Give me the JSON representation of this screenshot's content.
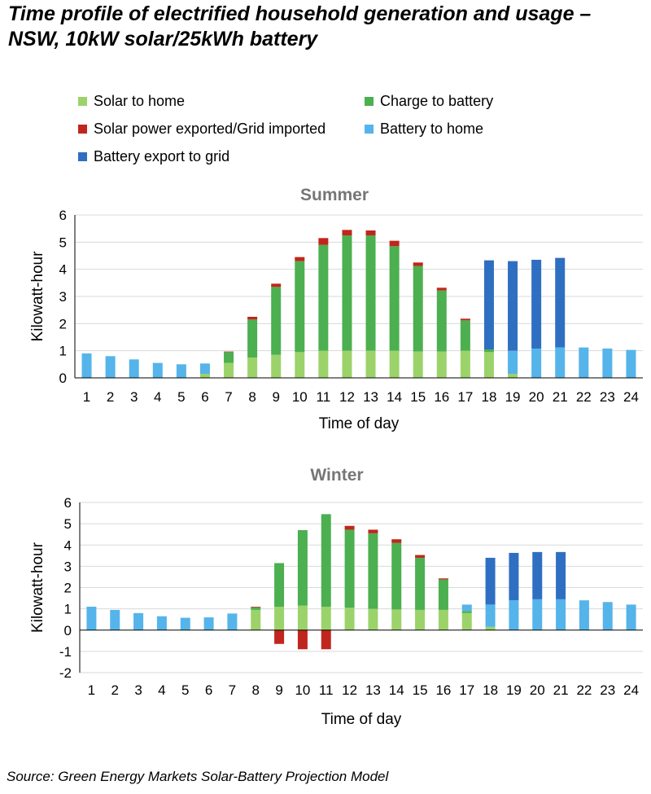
{
  "title": "Time profile of electrified household generation and usage – NSW, 10kW solar/25kWh battery",
  "source": "Source: Green Energy Markets Solar-Battery Projection Model",
  "legend": {
    "items": [
      {
        "label": "Solar to home",
        "color": "#9bd36a"
      },
      {
        "label": "Charge to battery",
        "color": "#4caf50"
      },
      {
        "label": "Solar power exported/Grid imported",
        "color": "#c0261d"
      },
      {
        "label": "Battery to home",
        "color": "#55b4ea"
      },
      {
        "label": "Battery export to grid",
        "color": "#2f6fc1"
      }
    ]
  },
  "chart_data": [
    {
      "type": "bar",
      "stacked": true,
      "title": "Summer",
      "xlabel": "Time of day",
      "ylabel": "Kilowatt-hour",
      "ylim": [
        0,
        6
      ],
      "yticks": [
        0,
        1,
        2,
        3,
        4,
        5,
        6
      ],
      "grid": true,
      "categories": [
        "1",
        "2",
        "3",
        "4",
        "5",
        "6",
        "7",
        "8",
        "9",
        "10",
        "11",
        "12",
        "13",
        "14",
        "15",
        "16",
        "17",
        "18",
        "19",
        "20",
        "21",
        "22",
        "23",
        "24"
      ],
      "series": [
        {
          "name": "Solar to home",
          "color": "#9bd36a",
          "values": [
            0,
            0,
            0,
            0,
            0,
            0.15,
            0.55,
            0.75,
            0.85,
            0.95,
            1.0,
            1.0,
            1.0,
            1.0,
            0.97,
            0.97,
            1.0,
            0.95,
            0.15,
            0,
            0,
            0,
            0,
            0
          ]
        },
        {
          "name": "Charge to battery",
          "color": "#4caf50",
          "values": [
            0,
            0,
            0,
            0,
            0,
            0,
            0.4,
            1.4,
            2.5,
            3.35,
            3.9,
            4.25,
            4.25,
            3.85,
            3.15,
            2.25,
            1.12,
            0.1,
            0,
            0,
            0,
            0,
            0,
            0
          ]
        },
        {
          "name": "Solar power exported/Grid imported",
          "color": "#c0261d",
          "values": [
            0,
            0,
            0,
            0,
            0,
            0,
            0.02,
            0.1,
            0.12,
            0.15,
            0.25,
            0.2,
            0.18,
            0.2,
            0.13,
            0.1,
            0.06,
            0,
            0,
            0,
            0,
            0,
            0,
            0
          ]
        },
        {
          "name": "Battery to home",
          "color": "#55b4ea",
          "values": [
            0.9,
            0.8,
            0.68,
            0.55,
            0.5,
            0.38,
            0,
            0,
            0,
            0,
            0,
            0,
            0,
            0,
            0,
            0,
            0,
            0,
            0.85,
            1.08,
            1.12,
            1.12,
            1.08,
            1.03
          ]
        },
        {
          "name": "Battery export to grid",
          "color": "#2f6fc1",
          "values": [
            0,
            0,
            0,
            0,
            0,
            0,
            0,
            0,
            0,
            0,
            0,
            0,
            0,
            0,
            0,
            0,
            0,
            3.28,
            3.3,
            3.27,
            3.3,
            0,
            0,
            0
          ]
        }
      ]
    },
    {
      "type": "bar",
      "stacked": true,
      "title": "Winter",
      "xlabel": "Time of day",
      "ylabel": "Kilowatt-hour",
      "ylim": [
        -2,
        6
      ],
      "yticks": [
        -2,
        -1,
        0,
        1,
        2,
        3,
        4,
        5,
        6
      ],
      "grid": true,
      "categories": [
        "1",
        "2",
        "3",
        "4",
        "5",
        "6",
        "7",
        "8",
        "9",
        "10",
        "11",
        "12",
        "13",
        "14",
        "15",
        "16",
        "17",
        "18",
        "19",
        "20",
        "21",
        "22",
        "23",
        "24"
      ],
      "series": [
        {
          "name": "Solar to home",
          "color": "#9bd36a",
          "values": [
            0,
            0,
            0,
            0,
            0,
            0,
            0,
            0.95,
            1.1,
            1.15,
            1.1,
            1.05,
            1.0,
            0.97,
            0.95,
            0.95,
            0.8,
            0.15,
            0,
            0,
            0,
            0,
            0,
            0
          ]
        },
        {
          "name": "Charge to battery",
          "color": "#4caf50",
          "values": [
            0,
            0,
            0,
            0,
            0,
            0,
            0,
            0.12,
            2.05,
            3.55,
            4.35,
            3.67,
            3.55,
            3.13,
            2.45,
            1.43,
            0.1,
            0,
            0,
            0,
            0,
            0,
            0,
            0
          ]
        },
        {
          "name": "Solar power exported/Grid imported",
          "color": "#c0261d",
          "values": [
            0,
            0,
            0,
            0,
            0,
            0,
            0,
            0.03,
            -0.65,
            -0.9,
            -0.9,
            0.18,
            0.17,
            0.17,
            0.13,
            0.05,
            0,
            0,
            0,
            0,
            0,
            0,
            0,
            0
          ]
        },
        {
          "name": "Battery to home",
          "color": "#55b4ea",
          "values": [
            1.1,
            0.95,
            0.8,
            0.65,
            0.58,
            0.6,
            0.78,
            0,
            0,
            0,
            0,
            0,
            0,
            0,
            0,
            0,
            0.3,
            1.05,
            1.4,
            1.45,
            1.45,
            1.4,
            1.32,
            1.2
          ]
        },
        {
          "name": "Battery export to grid",
          "color": "#2f6fc1",
          "values": [
            0,
            0,
            0,
            0,
            0,
            0,
            0,
            0,
            0,
            0,
            0,
            0,
            0,
            0,
            0,
            0,
            0,
            2.2,
            2.23,
            2.22,
            2.22,
            0,
            0,
            0
          ]
        }
      ]
    }
  ]
}
